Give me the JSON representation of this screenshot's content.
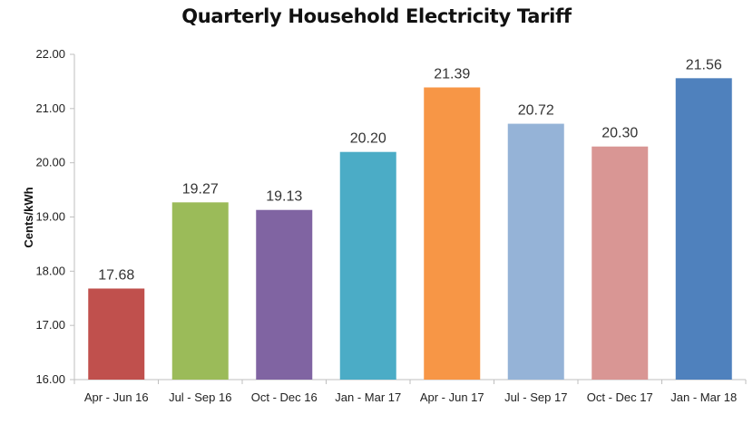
{
  "chart_data": {
    "type": "bar",
    "title": "Quarterly Household Electricity Tariff",
    "xlabel": "",
    "ylabel": "Cents/kWh",
    "ylim": [
      16,
      22
    ],
    "yticks": [
      "16.00",
      "17.00",
      "18.00",
      "19.00",
      "20.00",
      "21.00",
      "22.00"
    ],
    "grid": false,
    "categories": [
      "Apr - Jun 16",
      "Jul - Sep 16",
      "Oct - Dec 16",
      "Jan - Mar 17",
      "Apr - Jun 17",
      "Jul - Sep 17",
      "Oct - Dec 17",
      "Jan - Mar 18"
    ],
    "values": [
      17.68,
      19.27,
      19.13,
      20.2,
      21.39,
      20.72,
      20.3,
      21.56
    ],
    "data_labels": [
      "17.68",
      "19.27",
      "19.13",
      "20.20",
      "21.39",
      "20.72",
      "20.30",
      "21.56"
    ],
    "colors": [
      "#c0504d",
      "#9bbb59",
      "#8064a2",
      "#4bacc6",
      "#f79646",
      "#95b3d7",
      "#d99694",
      "#4f81bd"
    ]
  }
}
